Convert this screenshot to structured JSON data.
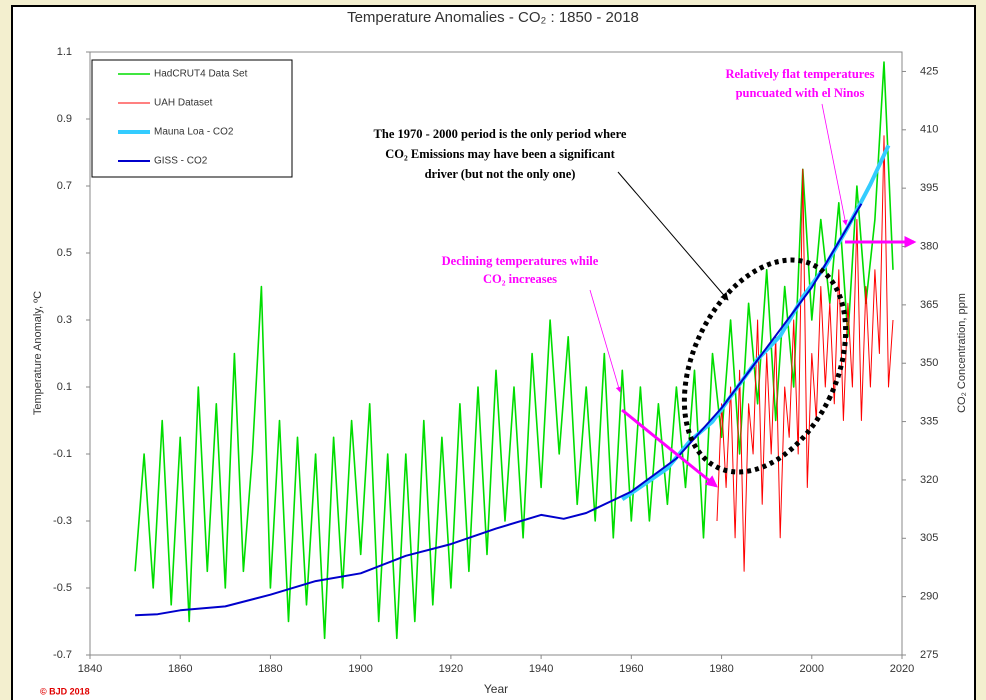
{
  "chart_data": {
    "type": "line",
    "title": "Temperature Anomalies - CO₂ : 1850 - 2018",
    "x_label": "Year",
    "y_label": "Temperature Anomaly, ºC",
    "y2_label": "CO₂ Concentration, ppm",
    "copyright": "© BJD 2018",
    "xlim": [
      1840,
      2020
    ],
    "xticks": [
      1840,
      1860,
      1880,
      1900,
      1920,
      1940,
      1960,
      1980,
      2000,
      2020
    ],
    "ylim": [
      -0.7,
      1.1
    ],
    "yticks": [
      -0.7,
      -0.5,
      -0.3,
      -0.1,
      0.1,
      0.3,
      0.5,
      0.7,
      0.9,
      1.1
    ],
    "y2lim": [
      275,
      430
    ],
    "y2ticks": [
      275,
      290,
      305,
      320,
      335,
      350,
      365,
      380,
      395,
      410,
      425
    ],
    "grid": false,
    "legend": "top-left",
    "series": [
      {
        "name": "HadCRUT4 Data Set",
        "color": "#00dd00",
        "width": 1.6,
        "x": [
          1850,
          1852,
          1854,
          1856,
          1858,
          1860,
          1862,
          1864,
          1866,
          1868,
          1870,
          1872,
          1874,
          1876,
          1878,
          1880,
          1882,
          1884,
          1886,
          1888,
          1890,
          1892,
          1894,
          1896,
          1898,
          1900,
          1902,
          1904,
          1906,
          1908,
          1910,
          1912,
          1914,
          1916,
          1918,
          1920,
          1922,
          1924,
          1926,
          1928,
          1930,
          1932,
          1934,
          1936,
          1938,
          1940,
          1942,
          1944,
          1946,
          1948,
          1950,
          1952,
          1954,
          1956,
          1958,
          1960,
          1962,
          1964,
          1966,
          1968,
          1970,
          1972,
          1974,
          1976,
          1978,
          1980,
          1982,
          1984,
          1986,
          1988,
          1990,
          1992,
          1994,
          1996,
          1998,
          2000,
          2002,
          2004,
          2006,
          2008,
          2010,
          2012,
          2014,
          2016,
          2018
        ],
        "values": [
          -0.45,
          -0.1,
          -0.5,
          0.0,
          -0.55,
          -0.05,
          -0.6,
          0.1,
          -0.45,
          0.05,
          -0.5,
          0.2,
          -0.45,
          -0.1,
          0.4,
          -0.5,
          0.0,
          -0.6,
          -0.05,
          -0.55,
          -0.1,
          -0.65,
          -0.05,
          -0.5,
          0.0,
          -0.4,
          0.05,
          -0.6,
          -0.1,
          -0.65,
          -0.1,
          -0.6,
          0.0,
          -0.55,
          -0.05,
          -0.5,
          0.05,
          -0.45,
          0.1,
          -0.4,
          0.15,
          -0.3,
          0.1,
          -0.35,
          0.2,
          -0.2,
          0.3,
          -0.1,
          0.25,
          -0.25,
          0.1,
          -0.3,
          0.2,
          -0.35,
          0.15,
          -0.3,
          0.1,
          -0.3,
          0.05,
          -0.25,
          0.1,
          -0.2,
          0.15,
          -0.35,
          0.2,
          -0.05,
          0.3,
          -0.1,
          0.35,
          0.05,
          0.45,
          0.0,
          0.4,
          0.1,
          0.75,
          0.3,
          0.6,
          0.35,
          0.65,
          0.25,
          0.7,
          0.35,
          0.6,
          1.07,
          0.45
        ]
      },
      {
        "name": "UAH Dataset",
        "color": "#ff0000",
        "width": 1,
        "x": [
          1979,
          1980,
          1981,
          1982,
          1983,
          1984,
          1985,
          1986,
          1987,
          1988,
          1989,
          1990,
          1991,
          1992,
          1993,
          1994,
          1995,
          1996,
          1997,
          1998,
          1999,
          2000,
          2001,
          2002,
          2003,
          2004,
          2005,
          2006,
          2007,
          2008,
          2009,
          2010,
          2011,
          2012,
          2013,
          2014,
          2015,
          2016,
          2017,
          2018
        ],
        "values": [
          -0.3,
          0.05,
          -0.2,
          0.1,
          -0.35,
          0.15,
          -0.45,
          0.05,
          -0.1,
          0.3,
          -0.25,
          0.2,
          -0.1,
          0.25,
          -0.35,
          0.1,
          -0.05,
          0.3,
          -0.1,
          0.75,
          -0.2,
          0.2,
          0.0,
          0.4,
          0.1,
          0.35,
          0.05,
          0.45,
          0.0,
          0.35,
          0.1,
          0.6,
          0.0,
          0.4,
          0.1,
          0.45,
          0.2,
          0.85,
          0.1,
          0.3
        ]
      },
      {
        "name": "Mauna Loa - CO2",
        "color": "#33ccff",
        "width": 4,
        "axis": "y2",
        "x": [
          1958,
          1963,
          1968,
          1973,
          1978,
          1983,
          1988,
          1993,
          1998,
          2003,
          2008,
          2013,
          2017
        ],
        "values": [
          315,
          319,
          323,
          330,
          335,
          343,
          351,
          357,
          367,
          375,
          385,
          396,
          406
        ]
      },
      {
        "name": "GISS - CO2",
        "color": "#0000cc",
        "width": 2,
        "axis": "y2",
        "x": [
          1850,
          1855,
          1860,
          1870,
          1880,
          1890,
          1900,
          1910,
          1920,
          1930,
          1940,
          1945,
          1950,
          1960,
          1970,
          1980,
          1990,
          2000,
          2011
        ],
        "values": [
          285.2,
          285.5,
          286.5,
          287.5,
          290.5,
          294,
          296,
          300.5,
          303.5,
          307.5,
          311,
          310,
          311.5,
          317,
          325.5,
          338.5,
          354,
          369.5,
          391
        ]
      }
    ],
    "annotations": [
      {
        "lines": [
          "Relatively flat temperatures",
          "puncuated with el Ninos"
        ],
        "color": "#ff00ff"
      },
      {
        "lines": [
          "The 1970 - 2000 period is the only period where",
          "CO₂ Emissions may have been a significant",
          "driver (but not the only one)"
        ],
        "color": "#000000"
      },
      {
        "lines": [
          "Declining temperatures while",
          "CO₂ increases"
        ],
        "color": "#ff00ff"
      }
    ]
  }
}
